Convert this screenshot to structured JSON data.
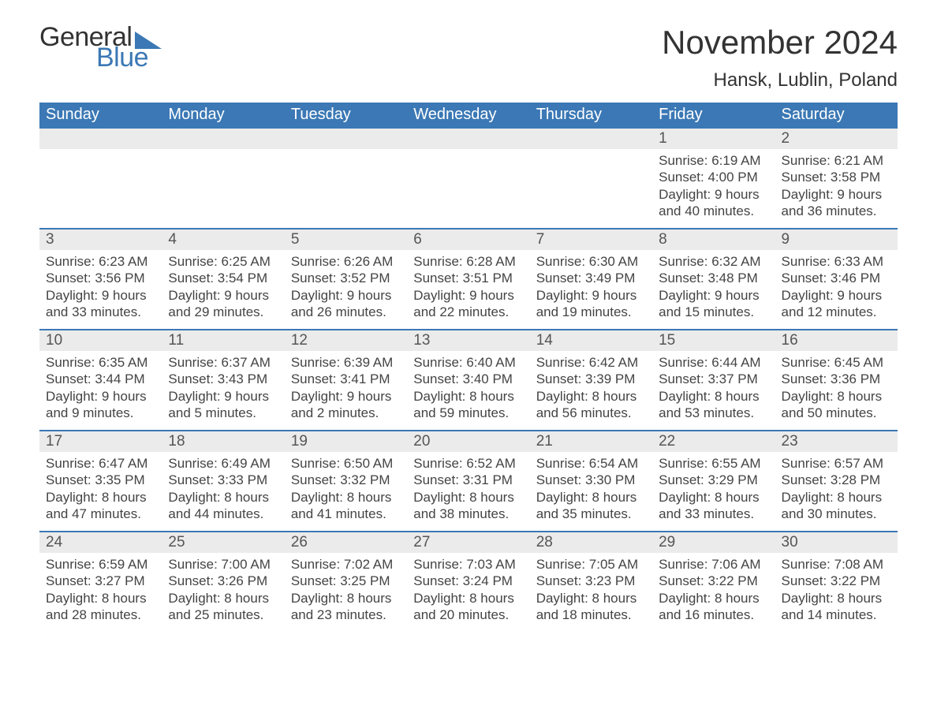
{
  "colors": {
    "brand_blue": "#3b78b5",
    "header_bg": "#3b78b5",
    "header_text": "#ffffff",
    "daynum_bg": "#ebebeb",
    "page_bg": "#ffffff",
    "base_text": "#333333",
    "body_text": "#444444",
    "row_border": "#3b78b5"
  },
  "fonts": {
    "title_size_pt": 32,
    "location_size_pt": 18,
    "header_cell_size_pt": 15,
    "daynum_size_pt": 14,
    "body_size_pt": 13
  },
  "logo": {
    "part1": "General",
    "part2": "Blue"
  },
  "title": "November 2024",
  "location": "Hansk, Lublin, Poland",
  "day_headers": [
    "Sunday",
    "Monday",
    "Tuesday",
    "Wednesday",
    "Thursday",
    "Friday",
    "Saturday"
  ],
  "weeks": [
    [
      null,
      null,
      null,
      null,
      null,
      {
        "n": "1",
        "sunrise": "Sunrise: 6:19 AM",
        "sunset": "Sunset: 4:00 PM",
        "d1": "Daylight: 9 hours",
        "d2": "and 40 minutes."
      },
      {
        "n": "2",
        "sunrise": "Sunrise: 6:21 AM",
        "sunset": "Sunset: 3:58 PM",
        "d1": "Daylight: 9 hours",
        "d2": "and 36 minutes."
      }
    ],
    [
      {
        "n": "3",
        "sunrise": "Sunrise: 6:23 AM",
        "sunset": "Sunset: 3:56 PM",
        "d1": "Daylight: 9 hours",
        "d2": "and 33 minutes."
      },
      {
        "n": "4",
        "sunrise": "Sunrise: 6:25 AM",
        "sunset": "Sunset: 3:54 PM",
        "d1": "Daylight: 9 hours",
        "d2": "and 29 minutes."
      },
      {
        "n": "5",
        "sunrise": "Sunrise: 6:26 AM",
        "sunset": "Sunset: 3:52 PM",
        "d1": "Daylight: 9 hours",
        "d2": "and 26 minutes."
      },
      {
        "n": "6",
        "sunrise": "Sunrise: 6:28 AM",
        "sunset": "Sunset: 3:51 PM",
        "d1": "Daylight: 9 hours",
        "d2": "and 22 minutes."
      },
      {
        "n": "7",
        "sunrise": "Sunrise: 6:30 AM",
        "sunset": "Sunset: 3:49 PM",
        "d1": "Daylight: 9 hours",
        "d2": "and 19 minutes."
      },
      {
        "n": "8",
        "sunrise": "Sunrise: 6:32 AM",
        "sunset": "Sunset: 3:48 PM",
        "d1": "Daylight: 9 hours",
        "d2": "and 15 minutes."
      },
      {
        "n": "9",
        "sunrise": "Sunrise: 6:33 AM",
        "sunset": "Sunset: 3:46 PM",
        "d1": "Daylight: 9 hours",
        "d2": "and 12 minutes."
      }
    ],
    [
      {
        "n": "10",
        "sunrise": "Sunrise: 6:35 AM",
        "sunset": "Sunset: 3:44 PM",
        "d1": "Daylight: 9 hours",
        "d2": "and 9 minutes."
      },
      {
        "n": "11",
        "sunrise": "Sunrise: 6:37 AM",
        "sunset": "Sunset: 3:43 PM",
        "d1": "Daylight: 9 hours",
        "d2": "and 5 minutes."
      },
      {
        "n": "12",
        "sunrise": "Sunrise: 6:39 AM",
        "sunset": "Sunset: 3:41 PM",
        "d1": "Daylight: 9 hours",
        "d2": "and 2 minutes."
      },
      {
        "n": "13",
        "sunrise": "Sunrise: 6:40 AM",
        "sunset": "Sunset: 3:40 PM",
        "d1": "Daylight: 8 hours",
        "d2": "and 59 minutes."
      },
      {
        "n": "14",
        "sunrise": "Sunrise: 6:42 AM",
        "sunset": "Sunset: 3:39 PM",
        "d1": "Daylight: 8 hours",
        "d2": "and 56 minutes."
      },
      {
        "n": "15",
        "sunrise": "Sunrise: 6:44 AM",
        "sunset": "Sunset: 3:37 PM",
        "d1": "Daylight: 8 hours",
        "d2": "and 53 minutes."
      },
      {
        "n": "16",
        "sunrise": "Sunrise: 6:45 AM",
        "sunset": "Sunset: 3:36 PM",
        "d1": "Daylight: 8 hours",
        "d2": "and 50 minutes."
      }
    ],
    [
      {
        "n": "17",
        "sunrise": "Sunrise: 6:47 AM",
        "sunset": "Sunset: 3:35 PM",
        "d1": "Daylight: 8 hours",
        "d2": "and 47 minutes."
      },
      {
        "n": "18",
        "sunrise": "Sunrise: 6:49 AM",
        "sunset": "Sunset: 3:33 PM",
        "d1": "Daylight: 8 hours",
        "d2": "and 44 minutes."
      },
      {
        "n": "19",
        "sunrise": "Sunrise: 6:50 AM",
        "sunset": "Sunset: 3:32 PM",
        "d1": "Daylight: 8 hours",
        "d2": "and 41 minutes."
      },
      {
        "n": "20",
        "sunrise": "Sunrise: 6:52 AM",
        "sunset": "Sunset: 3:31 PM",
        "d1": "Daylight: 8 hours",
        "d2": "and 38 minutes."
      },
      {
        "n": "21",
        "sunrise": "Sunrise: 6:54 AM",
        "sunset": "Sunset: 3:30 PM",
        "d1": "Daylight: 8 hours",
        "d2": "and 35 minutes."
      },
      {
        "n": "22",
        "sunrise": "Sunrise: 6:55 AM",
        "sunset": "Sunset: 3:29 PM",
        "d1": "Daylight: 8 hours",
        "d2": "and 33 minutes."
      },
      {
        "n": "23",
        "sunrise": "Sunrise: 6:57 AM",
        "sunset": "Sunset: 3:28 PM",
        "d1": "Daylight: 8 hours",
        "d2": "and 30 minutes."
      }
    ],
    [
      {
        "n": "24",
        "sunrise": "Sunrise: 6:59 AM",
        "sunset": "Sunset: 3:27 PM",
        "d1": "Daylight: 8 hours",
        "d2": "and 28 minutes."
      },
      {
        "n": "25",
        "sunrise": "Sunrise: 7:00 AM",
        "sunset": "Sunset: 3:26 PM",
        "d1": "Daylight: 8 hours",
        "d2": "and 25 minutes."
      },
      {
        "n": "26",
        "sunrise": "Sunrise: 7:02 AM",
        "sunset": "Sunset: 3:25 PM",
        "d1": "Daylight: 8 hours",
        "d2": "and 23 minutes."
      },
      {
        "n": "27",
        "sunrise": "Sunrise: 7:03 AM",
        "sunset": "Sunset: 3:24 PM",
        "d1": "Daylight: 8 hours",
        "d2": "and 20 minutes."
      },
      {
        "n": "28",
        "sunrise": "Sunrise: 7:05 AM",
        "sunset": "Sunset: 3:23 PM",
        "d1": "Daylight: 8 hours",
        "d2": "and 18 minutes."
      },
      {
        "n": "29",
        "sunrise": "Sunrise: 7:06 AM",
        "sunset": "Sunset: 3:22 PM",
        "d1": "Daylight: 8 hours",
        "d2": "and 16 minutes."
      },
      {
        "n": "30",
        "sunrise": "Sunrise: 7:08 AM",
        "sunset": "Sunset: 3:22 PM",
        "d1": "Daylight: 8 hours",
        "d2": "and 14 minutes."
      }
    ]
  ]
}
